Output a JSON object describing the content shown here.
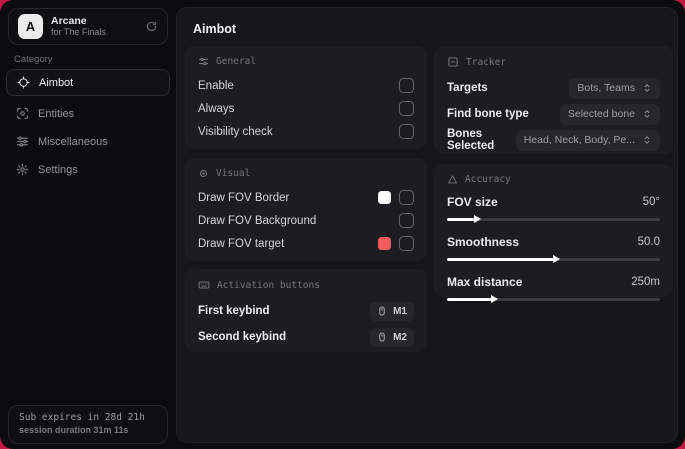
{
  "colors": {
    "backdrop": "#c31843",
    "swatch_white": "#ffffff",
    "swatch_red": "#f25c5c"
  },
  "app": {
    "name": "Arcane",
    "subtitle": "for The Finals",
    "logo_letter": "A"
  },
  "sidebar": {
    "category_label": "Category",
    "items": [
      {
        "label": "Aimbot"
      },
      {
        "label": "Entities"
      },
      {
        "label": "Miscellaneous"
      },
      {
        "label": "Settings"
      }
    ],
    "footer": {
      "line1": "Sub expires in 28d 21h",
      "line2": "session duration 31m 11s"
    }
  },
  "main": {
    "title": "Aimbot",
    "general": {
      "title": "General",
      "rows": [
        {
          "label": "Enable",
          "checked": false
        },
        {
          "label": "Always",
          "checked": false
        },
        {
          "label": "Visibility check",
          "checked": false
        }
      ]
    },
    "visual": {
      "title": "Visual",
      "rows": [
        {
          "label": "Draw FOV Border",
          "swatch": "#ffffff",
          "checked": false
        },
        {
          "label": "Draw FOV Background",
          "checked": false
        },
        {
          "label": "Draw FOV target",
          "swatch": "#f25c5c",
          "checked": false
        }
      ]
    },
    "activation": {
      "title": "Activation buttons",
      "rows": [
        {
          "label": "First keybind",
          "key": "M1"
        },
        {
          "label": "Second keybind",
          "key": "M2"
        }
      ]
    },
    "tracker": {
      "title": "Tracker",
      "rows": [
        {
          "label": "Targets",
          "value": "Bots, Teams"
        },
        {
          "label": "Find bone type",
          "value": "Selected bone"
        },
        {
          "label": "Bones Selected",
          "value": "Head, Neck, Body, Pe..."
        }
      ]
    },
    "accuracy": {
      "title": "Accuracy",
      "rows": [
        {
          "label": "FOV size",
          "value": "50°",
          "percent": 13
        },
        {
          "label": "Smoothness",
          "value": "50.0",
          "percent": 50
        },
        {
          "label": "Max distance",
          "value": "250m",
          "percent": 21
        }
      ]
    }
  }
}
